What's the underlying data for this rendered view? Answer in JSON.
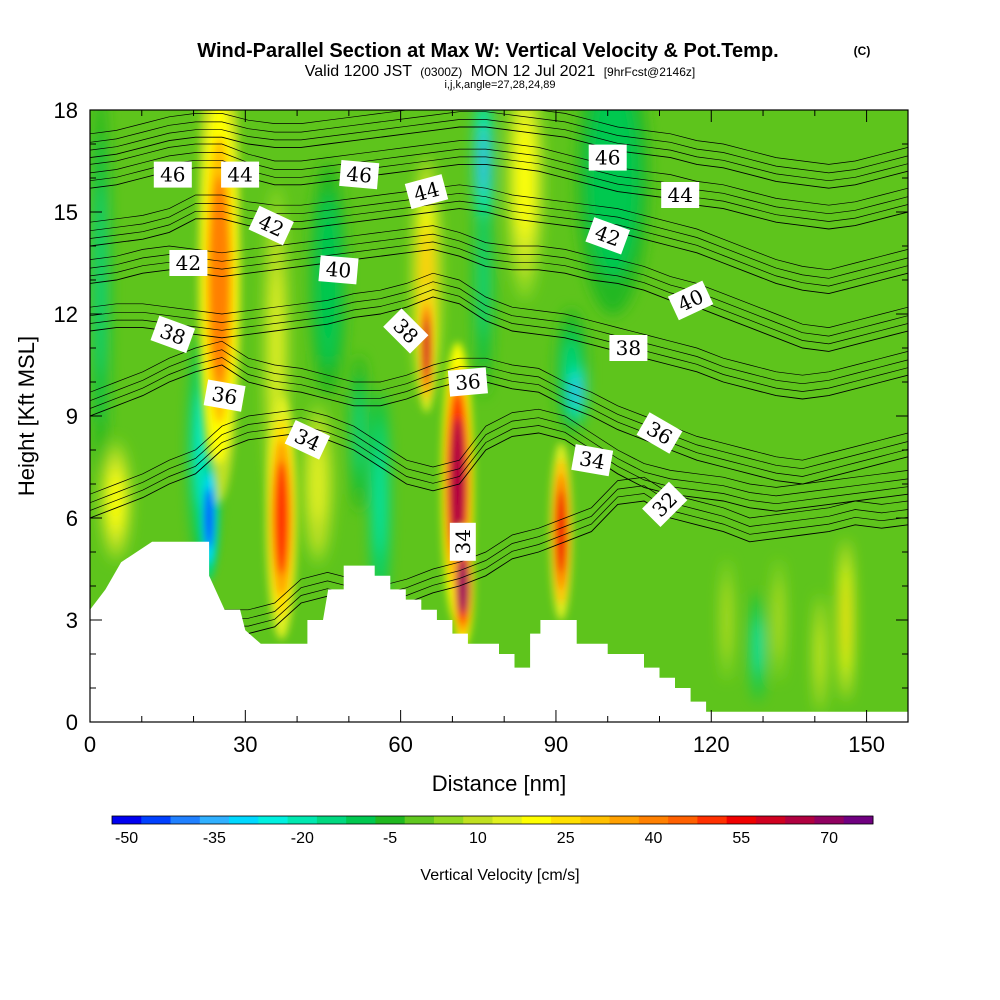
{
  "chart_data": {
    "type": "heatmap",
    "title": "Wind-Parallel Section at Max W: Vertical Velocity & Pot.Temp.",
    "copyright": "(C)",
    "subtitle": {
      "valid": "Valid 1200 JST",
      "utc": "(0300Z)",
      "date": "MON 12 Jul 2021",
      "forecast": "[9hrFcst@2146z]"
    },
    "indices": "i,j,k,angle=27,28,24,89",
    "xlabel": "Distance [nm]",
    "ylabel": "Height [Kft MSL]",
    "xlim": [
      0,
      158
    ],
    "ylim": [
      0,
      18
    ],
    "xticks": [
      "0",
      "30",
      "60",
      "90",
      "120",
      "150"
    ],
    "yticks": [
      "0",
      "3",
      "6",
      "9",
      "12",
      "15",
      "18"
    ],
    "colorbar": {
      "label": "Vertical Velocity [cm/s]",
      "tick_labels": [
        "-50",
        "-35",
        "-20",
        "-5",
        "10",
        "25",
        "40",
        "55",
        "70"
      ],
      "levels": [
        -50,
        -45,
        -40,
        -35,
        -30,
        -25,
        -20,
        -15,
        -10,
        -5,
        0,
        5,
        10,
        15,
        20,
        25,
        30,
        35,
        40,
        45,
        50,
        55,
        60,
        65,
        70,
        75,
        80
      ],
      "colors": [
        "#0000f0",
        "#0040ff",
        "#2080ff",
        "#30b0ff",
        "#00d8ff",
        "#00f0e0",
        "#00e8b0",
        "#00d880",
        "#00c850",
        "#20b820",
        "#60c820",
        "#90d820",
        "#c0e020",
        "#e0f020",
        "#ffff00",
        "#ffe000",
        "#ffc000",
        "#ffa000",
        "#ff8000",
        "#ff6000",
        "#ff3000",
        "#f00000",
        "#d00020",
        "#b00040",
        "#900060",
        "#700080"
      ]
    },
    "terrain": [
      [
        0,
        3.3
      ],
      [
        3,
        3.9
      ],
      [
        6,
        4.7
      ],
      [
        9,
        5.0
      ],
      [
        12,
        5.3
      ],
      [
        23,
        5.3
      ],
      [
        23,
        4.3
      ],
      [
        26,
        3.3
      ],
      [
        29,
        3.3
      ],
      [
        30,
        2.7
      ],
      [
        33,
        2.3
      ],
      [
        42,
        2.3
      ],
      [
        42,
        3.0
      ],
      [
        45,
        3.0
      ],
      [
        46,
        3.9
      ],
      [
        49,
        3.9
      ],
      [
        49,
        4.6
      ],
      [
        52,
        4.6
      ],
      [
        55,
        4.6
      ],
      [
        55,
        4.3
      ],
      [
        58,
        4.3
      ],
      [
        58,
        3.9
      ],
      [
        61,
        3.9
      ],
      [
        61,
        3.6
      ],
      [
        64,
        3.6
      ],
      [
        64,
        3.3
      ],
      [
        67,
        3.3
      ],
      [
        67,
        3.0
      ],
      [
        70,
        3.0
      ],
      [
        70,
        2.6
      ],
      [
        73,
        2.6
      ],
      [
        73,
        2.3
      ],
      [
        79,
        2.3
      ],
      [
        79,
        2.0
      ],
      [
        82,
        2.0
      ],
      [
        82,
        1.6
      ],
      [
        85,
        1.6
      ],
      [
        85,
        2.6
      ],
      [
        87,
        2.6
      ],
      [
        87,
        3.0
      ],
      [
        94,
        3.0
      ],
      [
        94,
        2.3
      ],
      [
        100,
        2.3
      ],
      [
        100,
        2.0
      ],
      [
        107,
        2.0
      ],
      [
        107,
        1.6
      ],
      [
        110,
        1.6
      ],
      [
        110,
        1.3
      ],
      [
        113,
        1.3
      ],
      [
        113,
        1.0
      ],
      [
        116,
        1.0
      ],
      [
        116,
        0.6
      ],
      [
        119,
        0.6
      ],
      [
        119,
        0.3
      ],
      [
        158,
        0.3
      ]
    ],
    "updrafts": [
      {
        "x": 25,
        "y": 13,
        "rx": 3.5,
        "ry": 5.5,
        "w": 40
      },
      {
        "x": 25,
        "y": 17,
        "rx": 2.5,
        "ry": 2.5,
        "w": 30
      },
      {
        "x": 37,
        "y": 6,
        "rx": 2.5,
        "ry": 3.0,
        "w": 50
      },
      {
        "x": 36,
        "y": 11,
        "rx": 2.0,
        "ry": 4.0,
        "w": 15
      },
      {
        "x": 65,
        "y": 11,
        "rx": 1.3,
        "ry": 1.6,
        "w": 60
      },
      {
        "x": 65,
        "y": 13,
        "rx": 2.2,
        "ry": 3.0,
        "w": 30
      },
      {
        "x": 71,
        "y": 7,
        "rx": 2.6,
        "ry": 3.5,
        "w": 65
      },
      {
        "x": 72,
        "y": 4,
        "rx": 1.8,
        "ry": 1.5,
        "w": 70
      },
      {
        "x": 91,
        "y": 5.6,
        "rx": 1.8,
        "ry": 2.2,
        "w": 55
      },
      {
        "x": 84,
        "y": 16,
        "rx": 3.0,
        "ry": 3.0,
        "w": 20
      },
      {
        "x": 5,
        "y": 6.5,
        "rx": 2.5,
        "ry": 1.5,
        "w": 20
      },
      {
        "x": 44,
        "y": 7.0,
        "rx": 2.5,
        "ry": 2.0,
        "w": 15
      },
      {
        "x": 146,
        "y": 3.0,
        "rx": 1.2,
        "ry": 2.0,
        "w": 25
      },
      {
        "x": 141,
        "y": 2.0,
        "rx": 1.0,
        "ry": 1.5,
        "w": 15
      },
      {
        "x": 123,
        "y": 3.0,
        "rx": 1.0,
        "ry": 1.5,
        "w": 12
      },
      {
        "x": 133,
        "y": 3.0,
        "rx": 1.0,
        "ry": 1.5,
        "w": 12
      }
    ],
    "downdrafts": [
      {
        "x": 23,
        "y": 6,
        "rx": 1.5,
        "ry": 1.6,
        "w": -45
      },
      {
        "x": 22,
        "y": 8,
        "rx": 2.5,
        "ry": 3.0,
        "w": -22
      },
      {
        "x": 76,
        "y": 16.5,
        "rx": 1.5,
        "ry": 1.8,
        "w": -35
      },
      {
        "x": 76,
        "y": 13,
        "rx": 1.5,
        "ry": 3.0,
        "w": -15
      },
      {
        "x": 94,
        "y": 9.7,
        "rx": 1.5,
        "ry": 0.8,
        "w": -35
      },
      {
        "x": 93,
        "y": 10.3,
        "rx": 2.5,
        "ry": 1.6,
        "w": -15
      },
      {
        "x": 56,
        "y": 6.5,
        "rx": 1.6,
        "ry": 2.8,
        "w": -20
      },
      {
        "x": 52,
        "y": 8.5,
        "rx": 1.5,
        "ry": 2.0,
        "w": -15
      },
      {
        "x": 2,
        "y": 13,
        "rx": 1.5,
        "ry": 5.0,
        "w": -12
      },
      {
        "x": 129,
        "y": 2.2,
        "rx": 1.0,
        "ry": 1.4,
        "w": -22
      },
      {
        "x": 46,
        "y": 13,
        "rx": 3.0,
        "ry": 3.0,
        "w": -10
      },
      {
        "x": 101,
        "y": 16,
        "rx": 6.0,
        "ry": 3.5,
        "w": -8
      }
    ],
    "isentropes": [
      {
        "value": 32,
        "ys": [
          2.6,
          2.6,
          2.6,
          2.6,
          2.6,
          2.6,
          2.6,
          2.8,
          3.5,
          3.7,
          3.5,
          3.3,
          3.5,
          3.8,
          4.0,
          4.3,
          4.8,
          5.0,
          5.3,
          5.6,
          6.4,
          6.5,
          6.0,
          5.8,
          5.6,
          5.3,
          5.4,
          5.5,
          5.6,
          5.8,
          5.7,
          5.8
        ]
      },
      {
        "value": 34,
        "ys": [
          6.0,
          6.3,
          6.6,
          7.0,
          7.3,
          8.0,
          8.3,
          8.4,
          8.5,
          8.3,
          8.0,
          7.5,
          7.0,
          6.8,
          7.0,
          8.0,
          8.4,
          8.5,
          8.3,
          7.8,
          7.3,
          6.9,
          6.7,
          6.6,
          6.5,
          6.3,
          6.2,
          6.3,
          6.4,
          6.5,
          6.6,
          6.7
        ]
      },
      {
        "value": 36,
        "ys": [
          9.0,
          9.3,
          9.6,
          10.0,
          10.3,
          10.5,
          10.0,
          9.8,
          9.7,
          9.5,
          9.3,
          9.3,
          9.5,
          9.8,
          10.0,
          10.0,
          9.8,
          9.7,
          9.3,
          9.0,
          8.6,
          8.3,
          8.0,
          7.7,
          7.5,
          7.3,
          7.1,
          7.0,
          7.2,
          7.4,
          7.6,
          7.8
        ]
      },
      {
        "value": 38,
        "ys": [
          11.5,
          11.6,
          11.6,
          11.5,
          11.4,
          11.3,
          11.4,
          11.5,
          11.6,
          11.7,
          11.9,
          12.0,
          12.2,
          12.5,
          12.3,
          11.8,
          11.5,
          11.4,
          11.3,
          11.1,
          10.9,
          10.7,
          10.5,
          10.3,
          10.0,
          9.8,
          9.6,
          9.5,
          9.6,
          9.8,
          10.0,
          10.2
        ]
      },
      {
        "value": 40,
        "ys": [
          12.9,
          13.0,
          13.2,
          13.3,
          13.2,
          13.1,
          13.2,
          13.3,
          13.4,
          13.5,
          13.6,
          13.7,
          13.8,
          13.9,
          13.7,
          13.4,
          13.3,
          13.3,
          13.2,
          13.0,
          12.9,
          12.7,
          12.4,
          12.2,
          11.9,
          11.6,
          11.3,
          11.0,
          10.9,
          11.1,
          11.3,
          11.5
        ]
      },
      {
        "value": 42,
        "ys": [
          14.0,
          14.1,
          14.2,
          14.4,
          14.8,
          14.8,
          14.6,
          14.5,
          14.5,
          14.6,
          14.7,
          14.8,
          14.9,
          15.0,
          15.1,
          15.0,
          14.8,
          14.7,
          14.6,
          14.5,
          14.4,
          14.2,
          14.0,
          13.8,
          13.5,
          13.2,
          12.9,
          12.7,
          12.6,
          12.8,
          13.0,
          13.2
        ]
      },
      {
        "value": 44,
        "ys": [
          15.7,
          15.8,
          16.0,
          16.2,
          16.3,
          16.3,
          16.0,
          15.8,
          15.8,
          15.9,
          16.0,
          16.1,
          16.2,
          16.3,
          16.4,
          16.4,
          16.3,
          16.2,
          16.0,
          15.8,
          15.6,
          15.5,
          15.4,
          15.2,
          15.1,
          14.9,
          14.7,
          14.6,
          14.5,
          14.6,
          14.8,
          15.0
        ]
      },
      {
        "value": 46,
        "ys": [
          16.6,
          16.7,
          16.9,
          17.1,
          17.2,
          17.2,
          17.0,
          16.9,
          16.9,
          17.0,
          17.1,
          17.2,
          17.3,
          17.4,
          17.5,
          17.5,
          17.4,
          17.3,
          17.2,
          17.0,
          16.8,
          16.7,
          16.6,
          16.4,
          16.3,
          16.1,
          15.9,
          15.8,
          15.7,
          15.8,
          16.0,
          16.2
        ]
      }
    ],
    "contour_labels": [
      {
        "text": "46",
        "x": 16,
        "y": 16.1,
        "angle": 0
      },
      {
        "text": "44",
        "x": 29,
        "y": 16.1,
        "angle": 0
      },
      {
        "text": "46",
        "x": 52,
        "y": 16.1,
        "angle": 5
      },
      {
        "text": "44",
        "x": 65,
        "y": 15.6,
        "angle": -15
      },
      {
        "text": "46",
        "x": 100,
        "y": 16.6,
        "angle": 0
      },
      {
        "text": "44",
        "x": 114,
        "y": 15.5,
        "angle": 0
      },
      {
        "text": "42",
        "x": 35,
        "y": 14.6,
        "angle": 25
      },
      {
        "text": "42",
        "x": 19,
        "y": 13.5,
        "angle": 0
      },
      {
        "text": "40",
        "x": 48,
        "y": 13.3,
        "angle": 5
      },
      {
        "text": "42",
        "x": 100,
        "y": 14.3,
        "angle": 20
      },
      {
        "text": "40",
        "x": 116,
        "y": 12.4,
        "angle": -25
      },
      {
        "text": "38",
        "x": 16,
        "y": 11.4,
        "angle": 20
      },
      {
        "text": "38",
        "x": 61,
        "y": 11.5,
        "angle": 45
      },
      {
        "text": "38",
        "x": 104,
        "y": 11.0,
        "angle": 0
      },
      {
        "text": "36",
        "x": 26,
        "y": 9.6,
        "angle": 10
      },
      {
        "text": "36",
        "x": 73,
        "y": 10.0,
        "angle": -5
      },
      {
        "text": "36",
        "x": 110,
        "y": 8.5,
        "angle": 30
      },
      {
        "text": "34",
        "x": 42,
        "y": 8.3,
        "angle": 25
      },
      {
        "text": "34",
        "x": 97,
        "y": 7.7,
        "angle": 10
      },
      {
        "text": "34",
        "x": 72,
        "y": 5.3,
        "angle": -90
      },
      {
        "text": "32",
        "x": 111,
        "y": 6.4,
        "angle": -45
      }
    ]
  }
}
